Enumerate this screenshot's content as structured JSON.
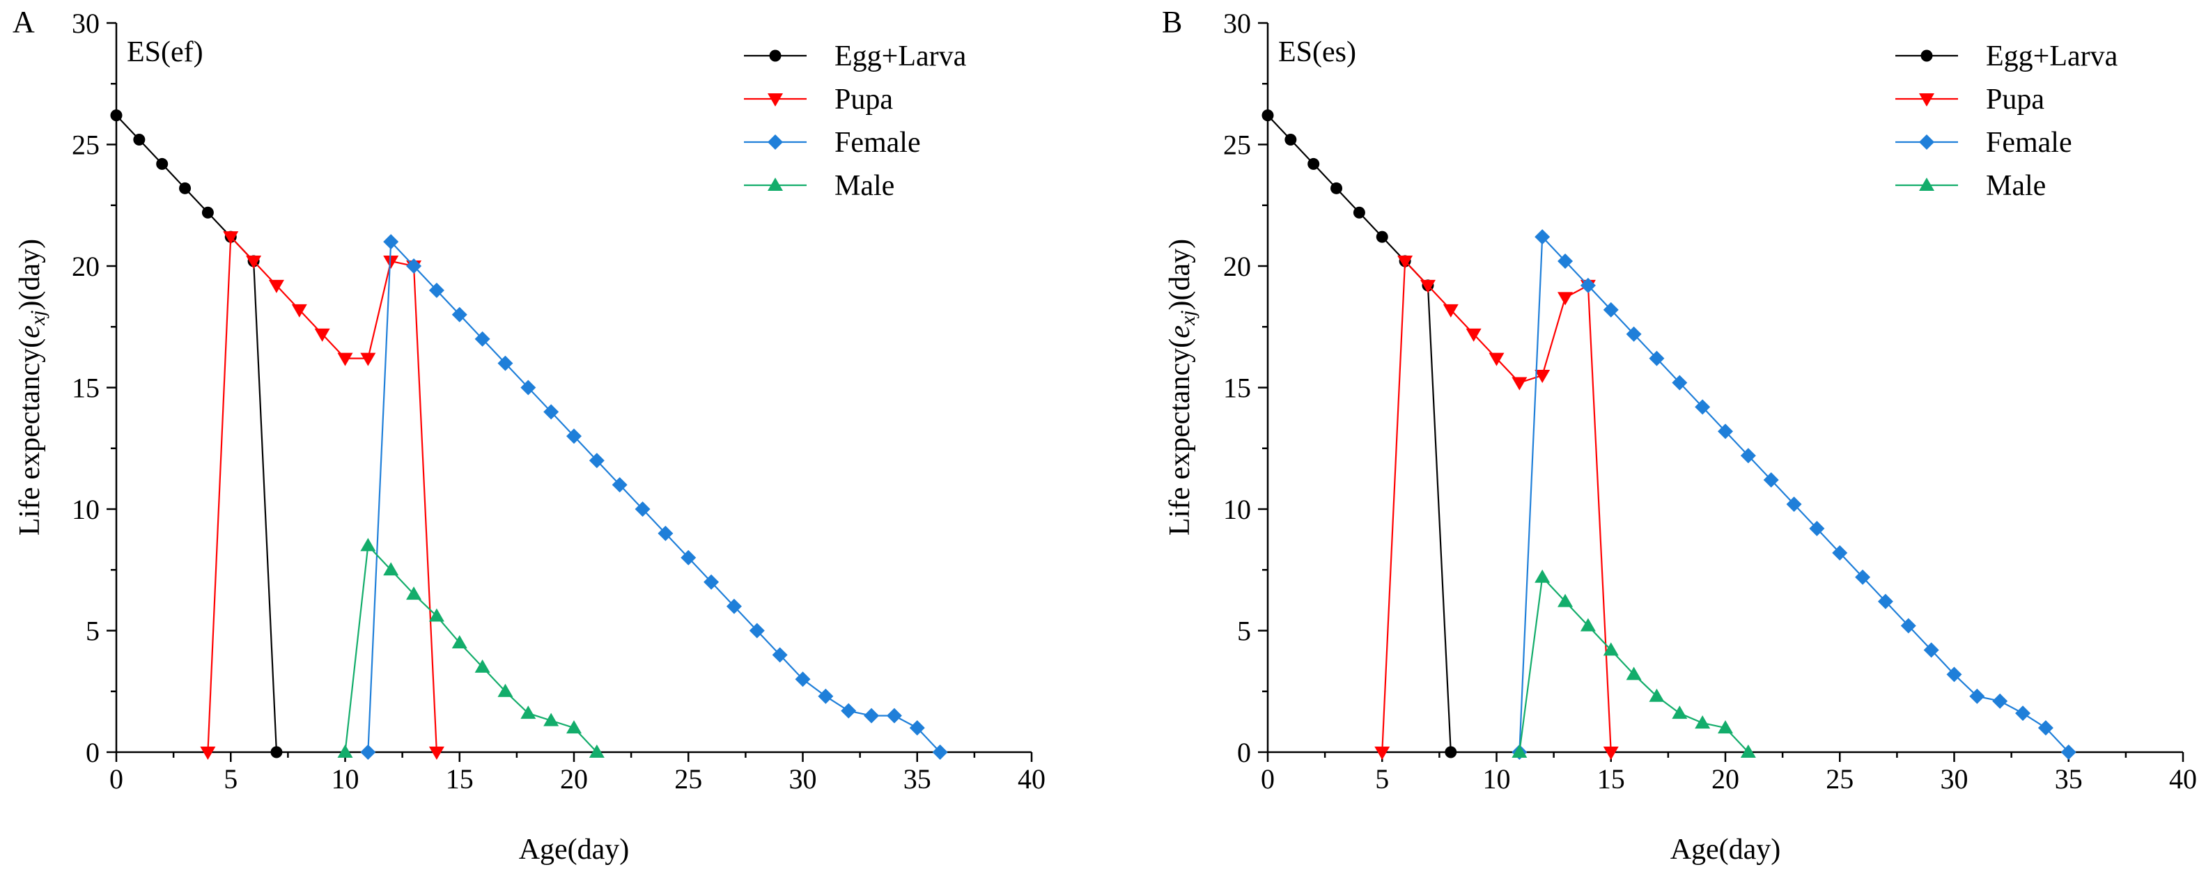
{
  "chart_data": [
    {
      "type": "line",
      "panel_letter": "A",
      "title": "ES(ef)",
      "xlabel": "Age(day)",
      "ylabel_prefix": "Life  expectancy(",
      "ylabel_var": "e",
      "ylabel_sub": "xj",
      "ylabel_suffix": ")(day)",
      "xlim": [
        0,
        40
      ],
      "ylim": [
        0,
        30
      ],
      "xticks": [
        "0",
        "5",
        "10",
        "15",
        "20",
        "25",
        "30",
        "35",
        "40"
      ],
      "yticks": [
        "0",
        "5",
        "10",
        "15",
        "20",
        "25",
        "30"
      ],
      "legend_position": "top-right",
      "series": [
        {
          "name": "Egg+Larva",
          "color": "#000000",
          "marker": "circle",
          "x": [
            0,
            1,
            2,
            3,
            4,
            5,
            6,
            7
          ],
          "y": [
            26.2,
            25.2,
            24.2,
            23.2,
            22.2,
            21.2,
            20.2,
            0
          ]
        },
        {
          "name": "Pupa",
          "color": "#ff0000",
          "marker": "triangle-down",
          "x": [
            4,
            5,
            6,
            7,
            8,
            9,
            10,
            11,
            12,
            13,
            14
          ],
          "y": [
            0,
            21.2,
            20.2,
            19.2,
            18.2,
            17.2,
            16.2,
            16.2,
            20.2,
            20.0,
            0
          ]
        },
        {
          "name": "Female",
          "color": "#1f7fd9",
          "marker": "diamond",
          "x": [
            11,
            12,
            13,
            14,
            15,
            16,
            17,
            18,
            19,
            20,
            21,
            22,
            23,
            24,
            25,
            26,
            27,
            28,
            29,
            30,
            31,
            32,
            33,
            34,
            35,
            36
          ],
          "y": [
            0,
            21.0,
            20.0,
            19.0,
            18.0,
            17.0,
            16.0,
            15.0,
            14.0,
            13.0,
            12.0,
            11.0,
            10.0,
            9.0,
            8.0,
            7.0,
            6.0,
            5.0,
            4.0,
            3.0,
            2.3,
            1.7,
            1.5,
            1.5,
            1.0,
            0
          ]
        },
        {
          "name": "Male",
          "color": "#13ad6b",
          "marker": "triangle-up",
          "x": [
            10,
            11,
            12,
            13,
            14,
            15,
            16,
            17,
            18,
            19,
            20,
            21
          ],
          "y": [
            0,
            8.5,
            7.5,
            6.5,
            5.6,
            4.5,
            3.5,
            2.5,
            1.6,
            1.3,
            1.0,
            0
          ]
        }
      ]
    },
    {
      "type": "line",
      "panel_letter": "B",
      "title": "ES(es)",
      "xlabel": "Age(day)",
      "ylabel_prefix": "Life  expectancy(",
      "ylabel_var": "e",
      "ylabel_sub": "xj",
      "ylabel_suffix": ")(day)",
      "xlim": [
        0,
        40
      ],
      "ylim": [
        0,
        30
      ],
      "xticks": [
        "0",
        "5",
        "10",
        "15",
        "20",
        "25",
        "30",
        "35",
        "40"
      ],
      "yticks": [
        "0",
        "5",
        "10",
        "15",
        "20",
        "25",
        "30"
      ],
      "legend_position": "top-right",
      "series": [
        {
          "name": "Egg+Larva",
          "color": "#000000",
          "marker": "circle",
          "x": [
            0,
            1,
            2,
            3,
            4,
            5,
            6,
            7,
            8
          ],
          "y": [
            26.2,
            25.2,
            24.2,
            23.2,
            22.2,
            21.2,
            20.2,
            19.2,
            0
          ]
        },
        {
          "name": "Pupa",
          "color": "#ff0000",
          "marker": "triangle-down",
          "x": [
            5,
            6,
            7,
            8,
            9,
            10,
            11,
            12,
            13,
            14,
            15
          ],
          "y": [
            0,
            20.2,
            19.2,
            18.2,
            17.2,
            16.2,
            15.2,
            15.5,
            18.7,
            19.2,
            0
          ]
        },
        {
          "name": "Female",
          "color": "#1f7fd9",
          "marker": "diamond",
          "x": [
            11,
            12,
            13,
            14,
            15,
            16,
            17,
            18,
            19,
            20,
            21,
            22,
            23,
            24,
            25,
            26,
            27,
            28,
            29,
            30,
            31,
            32,
            33,
            34,
            35
          ],
          "y": [
            0,
            21.2,
            20.2,
            19.2,
            18.2,
            17.2,
            16.2,
            15.2,
            14.2,
            13.2,
            12.2,
            11.2,
            10.2,
            9.2,
            8.2,
            7.2,
            6.2,
            5.2,
            4.2,
            3.2,
            2.3,
            2.1,
            1.6,
            1.0,
            0
          ]
        },
        {
          "name": "Male",
          "color": "#13ad6b",
          "marker": "triangle-up",
          "x": [
            11,
            12,
            13,
            14,
            15,
            16,
            17,
            18,
            19,
            20,
            21
          ],
          "y": [
            0,
            7.2,
            6.2,
            5.2,
            4.2,
            3.2,
            2.3,
            1.6,
            1.2,
            1.0,
            0
          ]
        }
      ]
    }
  ]
}
